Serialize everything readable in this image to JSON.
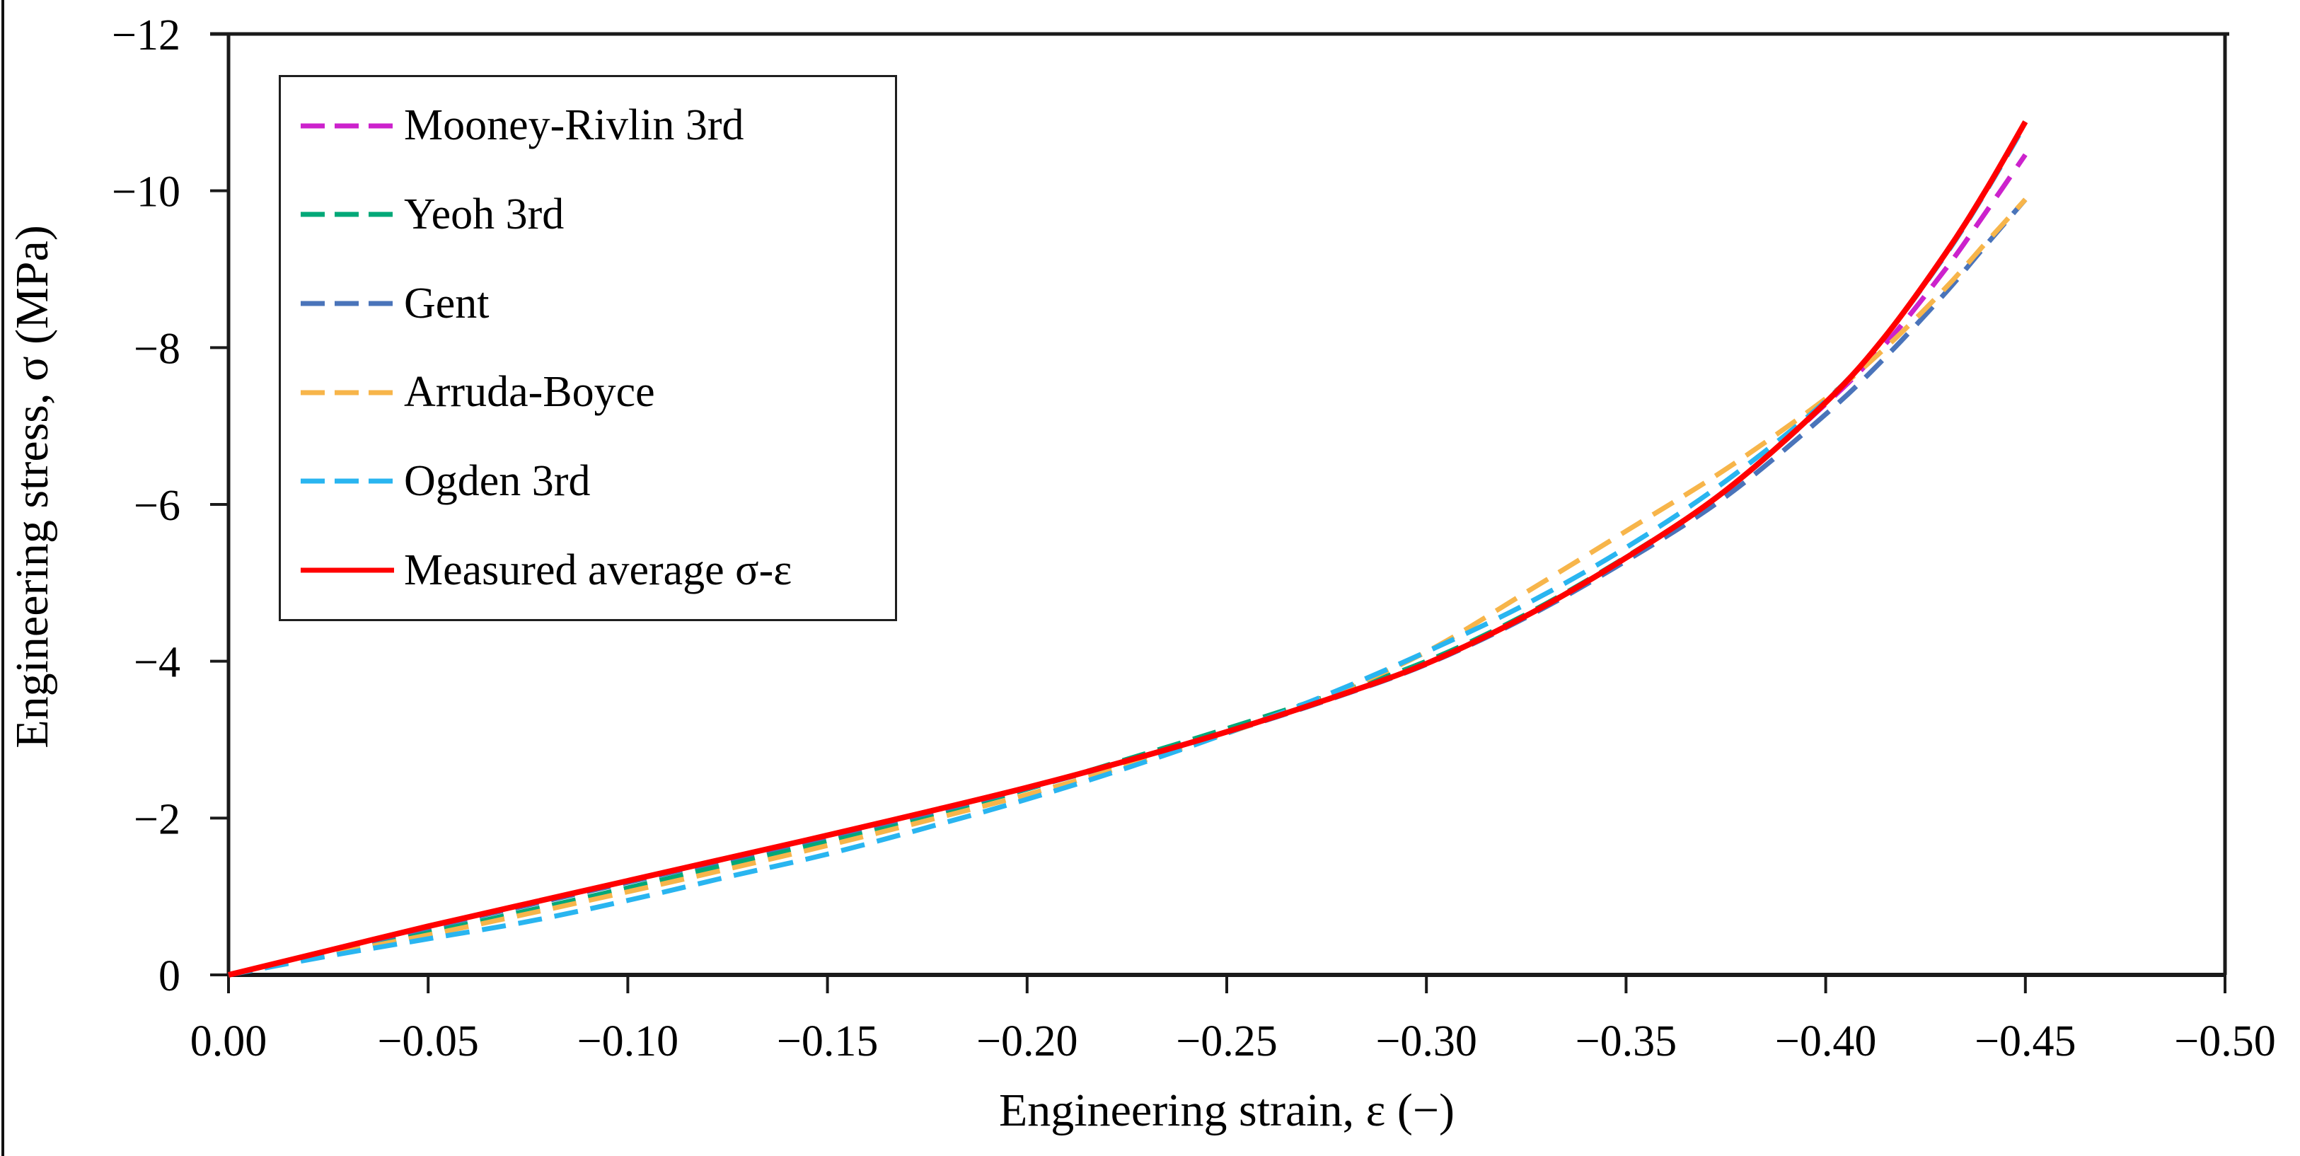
{
  "figure": {
    "background": "#ffffff",
    "border_color": "#111111",
    "axis_color": "#1a1a1a"
  },
  "chart_data": {
    "type": "line",
    "title": "",
    "xlabel": "Engineering strain, ε (−)",
    "ylabel": "Engineering stress, σ (MPa)",
    "xlim": [
      0,
      -0.5
    ],
    "ylim": [
      0,
      -12
    ],
    "grid": false,
    "legend_position": "upper left inside",
    "x_ticks": [
      {
        "v": 0,
        "label": "0.00"
      },
      {
        "v": -0.05,
        "label": "−0.05"
      },
      {
        "v": -0.1,
        "label": "−0.10"
      },
      {
        "v": -0.15,
        "label": "−0.15"
      },
      {
        "v": -0.2,
        "label": "−0.20"
      },
      {
        "v": -0.25,
        "label": "−0.25"
      },
      {
        "v": -0.3,
        "label": "−0.30"
      },
      {
        "v": -0.35,
        "label": "−0.35"
      },
      {
        "v": -0.4,
        "label": "−0.40"
      },
      {
        "v": -0.45,
        "label": "−0.45"
      },
      {
        "v": -0.5,
        "label": "−0.50"
      }
    ],
    "y_ticks": [
      {
        "v": 0,
        "label": "0"
      },
      {
        "v": -2,
        "label": "−2"
      },
      {
        "v": -4,
        "label": "−4"
      },
      {
        "v": -6,
        "label": "−6"
      },
      {
        "v": -8,
        "label": "−8"
      },
      {
        "v": -10,
        "label": "−10"
      },
      {
        "v": -12,
        "label": "−12"
      }
    ],
    "series": [
      {
        "name": "Mooney-Rivlin 3rd",
        "color": "#CC22CC",
        "dashed": true,
        "points": [
          [
            0,
            0
          ],
          [
            -0.025,
            -0.31
          ],
          [
            -0.05,
            -0.62
          ],
          [
            -0.075,
            -0.91
          ],
          [
            -0.1,
            -1.2
          ],
          [
            -0.125,
            -1.49
          ],
          [
            -0.15,
            -1.78
          ],
          [
            -0.175,
            -2.08
          ],
          [
            -0.2,
            -2.39
          ],
          [
            -0.225,
            -2.73
          ],
          [
            -0.25,
            -3.1
          ],
          [
            -0.275,
            -3.51
          ],
          [
            -0.3,
            -3.97
          ],
          [
            -0.325,
            -4.58
          ],
          [
            -0.35,
            -5.32
          ],
          [
            -0.375,
            -6.18
          ],
          [
            -0.4,
            -7.28
          ],
          [
            -0.415,
            -8.05
          ],
          [
            -0.43,
            -9.0
          ],
          [
            -0.44,
            -9.72
          ],
          [
            -0.45,
            -10.46
          ]
        ]
      },
      {
        "name": "Yeoh 3rd",
        "color": "#00A878",
        "dashed": true,
        "points": [
          [
            0,
            0
          ],
          [
            -0.025,
            -0.27
          ],
          [
            -0.05,
            -0.54
          ],
          [
            -0.075,
            -0.82
          ],
          [
            -0.1,
            -1.11
          ],
          [
            -0.125,
            -1.41
          ],
          [
            -0.15,
            -1.71
          ],
          [
            -0.175,
            -2.03
          ],
          [
            -0.2,
            -2.37
          ],
          [
            -0.225,
            -2.75
          ],
          [
            -0.25,
            -3.14
          ],
          [
            -0.275,
            -3.55
          ],
          [
            -0.3,
            -4.0
          ],
          [
            -0.325,
            -4.6
          ],
          [
            -0.35,
            -5.33
          ],
          [
            -0.375,
            -6.18
          ],
          [
            -0.4,
            -7.3
          ],
          [
            -0.415,
            -8.15
          ],
          [
            -0.43,
            -9.2
          ],
          [
            -0.44,
            -10.0
          ],
          [
            -0.45,
            -10.88
          ]
        ]
      },
      {
        "name": "Gent",
        "color": "#4A74BA",
        "dashed": true,
        "points": [
          [
            0,
            0
          ],
          [
            -0.025,
            -0.3
          ],
          [
            -0.05,
            -0.6
          ],
          [
            -0.075,
            -0.89
          ],
          [
            -0.1,
            -1.18
          ],
          [
            -0.125,
            -1.47
          ],
          [
            -0.15,
            -1.76
          ],
          [
            -0.175,
            -2.06
          ],
          [
            -0.2,
            -2.38
          ],
          [
            -0.225,
            -2.72
          ],
          [
            -0.25,
            -3.09
          ],
          [
            -0.275,
            -3.5
          ],
          [
            -0.3,
            -3.96
          ],
          [
            -0.325,
            -4.56
          ],
          [
            -0.35,
            -5.28
          ],
          [
            -0.375,
            -6.1
          ],
          [
            -0.4,
            -7.15
          ],
          [
            -0.415,
            -7.88
          ],
          [
            -0.43,
            -8.7
          ],
          [
            -0.44,
            -9.3
          ],
          [
            -0.45,
            -9.89
          ]
        ]
      },
      {
        "name": "Arruda-Boyce",
        "color": "#F7B54A",
        "dashed": true,
        "points": [
          [
            0,
            0
          ],
          [
            -0.025,
            -0.26
          ],
          [
            -0.05,
            -0.51
          ],
          [
            -0.075,
            -0.78
          ],
          [
            -0.1,
            -1.06
          ],
          [
            -0.125,
            -1.35
          ],
          [
            -0.15,
            -1.65
          ],
          [
            -0.175,
            -1.97
          ],
          [
            -0.2,
            -2.3
          ],
          [
            -0.225,
            -2.67
          ],
          [
            -0.25,
            -3.08
          ],
          [
            -0.275,
            -3.55
          ],
          [
            -0.3,
            -4.12
          ],
          [
            -0.325,
            -4.88
          ],
          [
            -0.35,
            -5.66
          ],
          [
            -0.375,
            -6.45
          ],
          [
            -0.4,
            -7.35
          ],
          [
            -0.415,
            -8.0
          ],
          [
            -0.43,
            -8.76
          ],
          [
            -0.44,
            -9.33
          ],
          [
            -0.45,
            -9.89
          ]
        ]
      },
      {
        "name": "Ogden 3rd",
        "color": "#29B5F0",
        "dashed": true,
        "points": [
          [
            0,
            0
          ],
          [
            -0.025,
            -0.24
          ],
          [
            -0.05,
            -0.46
          ],
          [
            -0.075,
            -0.68
          ],
          [
            -0.1,
            -0.95
          ],
          [
            -0.125,
            -1.25
          ],
          [
            -0.15,
            -1.54
          ],
          [
            -0.175,
            -1.88
          ],
          [
            -0.2,
            -2.24
          ],
          [
            -0.225,
            -2.64
          ],
          [
            -0.25,
            -3.08
          ],
          [
            -0.275,
            -3.57
          ],
          [
            -0.3,
            -4.12
          ],
          [
            -0.325,
            -4.73
          ],
          [
            -0.35,
            -5.45
          ],
          [
            -0.375,
            -6.3
          ],
          [
            -0.4,
            -7.32
          ],
          [
            -0.415,
            -8.15
          ],
          [
            -0.43,
            -9.18
          ],
          [
            -0.44,
            -9.98
          ],
          [
            -0.45,
            -10.85
          ]
        ]
      },
      {
        "name": "Measured average σ-ε",
        "color": "#FF0000",
        "dashed": false,
        "points": [
          [
            0,
            0
          ],
          [
            -0.025,
            -0.31
          ],
          [
            -0.05,
            -0.62
          ],
          [
            -0.075,
            -0.91
          ],
          [
            -0.1,
            -1.2
          ],
          [
            -0.125,
            -1.49
          ],
          [
            -0.15,
            -1.78
          ],
          [
            -0.175,
            -2.08
          ],
          [
            -0.2,
            -2.39
          ],
          [
            -0.225,
            -2.73
          ],
          [
            -0.25,
            -3.1
          ],
          [
            -0.275,
            -3.51
          ],
          [
            -0.3,
            -3.97
          ],
          [
            -0.325,
            -4.58
          ],
          [
            -0.35,
            -5.32
          ],
          [
            -0.375,
            -6.18
          ],
          [
            -0.4,
            -7.3
          ],
          [
            -0.415,
            -8.15
          ],
          [
            -0.43,
            -9.2
          ],
          [
            -0.44,
            -10.0
          ],
          [
            -0.45,
            -10.88
          ]
        ]
      }
    ]
  }
}
